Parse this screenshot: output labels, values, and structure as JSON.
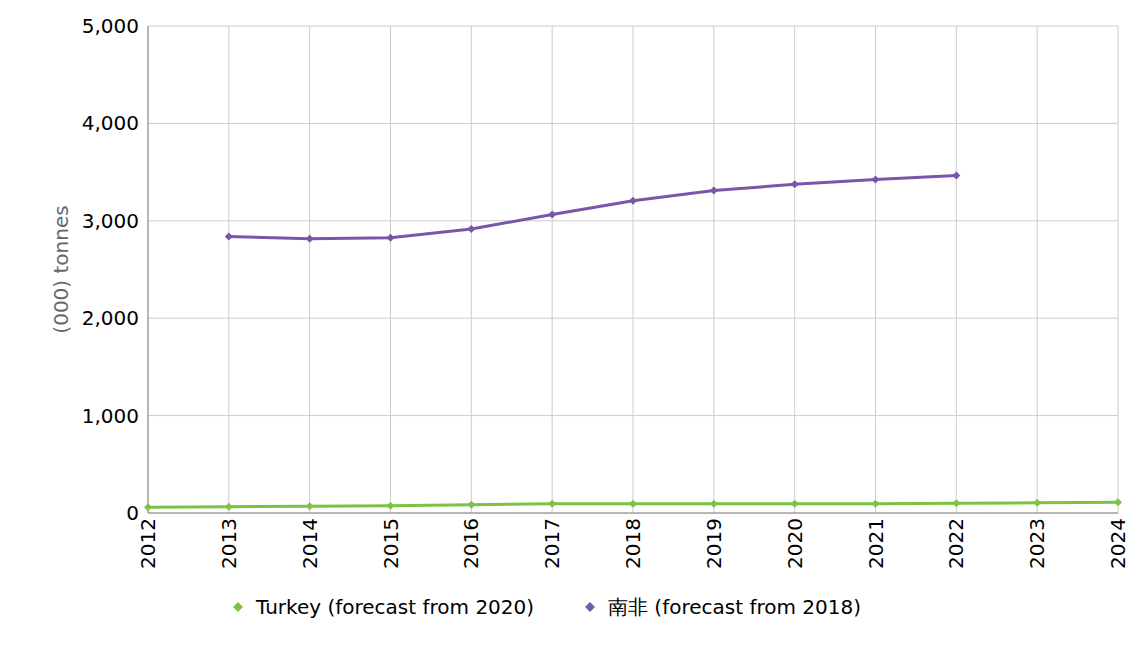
{
  "chart_data": {
    "type": "line",
    "y_label": "(000) tonnes",
    "x": [
      2012,
      2013,
      2014,
      2015,
      2016,
      2017,
      2018,
      2019,
      2020,
      2021,
      2022,
      2023,
      2024
    ],
    "xlim": [
      2012,
      2024
    ],
    "xticks": [
      2012,
      2013,
      2014,
      2015,
      2016,
      2017,
      2018,
      2019,
      2020,
      2021,
      2022,
      2023,
      2024
    ],
    "ylim": [
      0,
      5000
    ],
    "yticks": [
      0,
      {
        "value": 1000,
        "label": "1,000"
      },
      {
        "value": 2000,
        "label": "2,000"
      },
      {
        "value": 3000,
        "label": "3,000"
      },
      {
        "value": 4000,
        "label": "4,000"
      },
      {
        "value": 5000,
        "label": "5,000"
      }
    ],
    "grid": true,
    "legend": "bottom",
    "series": [
      {
        "name": "Turkey (forecast from 2020)",
        "color": "#7dc242",
        "marker": "diamond",
        "values": [
          60,
          65,
          70,
          75,
          85,
          95,
          95,
          95,
          95,
          95,
          100,
          105,
          110
        ]
      },
      {
        "name": "南非 (forecast from 2018)",
        "color": "#7856a8",
        "marker": "diamond",
        "values": [
          null,
          2840,
          2815,
          2825,
          2915,
          3065,
          3205,
          3310,
          3375,
          3425,
          3465,
          null,
          null
        ]
      }
    ]
  }
}
